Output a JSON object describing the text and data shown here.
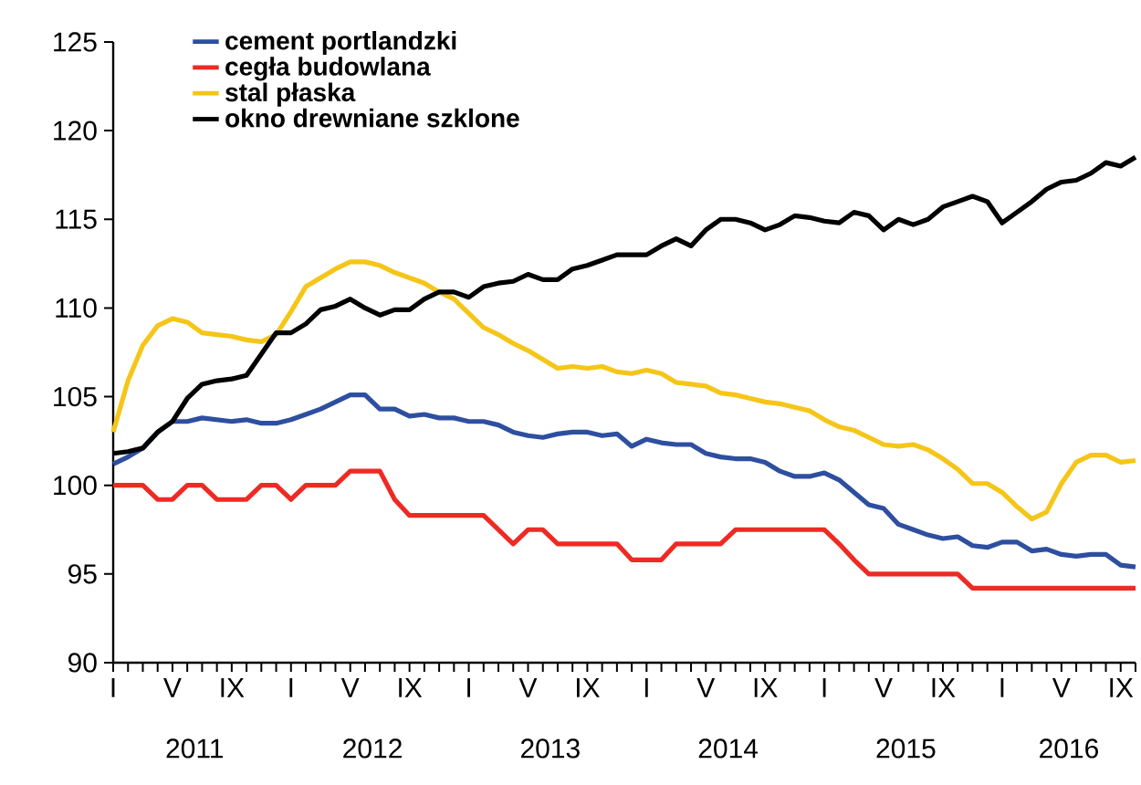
{
  "chart_data": {
    "type": "line",
    "categories": [
      "I",
      null,
      null,
      null,
      "V",
      null,
      null,
      null,
      "IX",
      null,
      null,
      null,
      "I",
      null,
      null,
      null,
      "V",
      null,
      null,
      null,
      "IX",
      null,
      null,
      null,
      "I",
      null,
      null,
      null,
      "V",
      null,
      null,
      null,
      "IX",
      null,
      null,
      null,
      "I",
      null,
      null,
      null,
      "V",
      null,
      null,
      null,
      "IX",
      null,
      null,
      null,
      "I",
      null,
      null,
      null,
      "V",
      null,
      null,
      null,
      "IX",
      null,
      null,
      null,
      "I",
      null,
      null,
      null,
      "V",
      null,
      null,
      null,
      "IX",
      null
    ],
    "series": [
      {
        "name": "cement portlandzki",
        "color": "#2e4fa0",
        "values": [
          101.2,
          101.6,
          102.1,
          103.0,
          103.6,
          103.6,
          103.8,
          103.7,
          103.6,
          103.7,
          103.5,
          103.5,
          103.7,
          104.0,
          104.3,
          104.7,
          105.1,
          105.1,
          104.3,
          104.3,
          103.9,
          104.0,
          103.8,
          103.8,
          103.6,
          103.6,
          103.4,
          103.0,
          102.8,
          102.7,
          102.9,
          103.0,
          103.0,
          102.8,
          102.9,
          102.2,
          102.6,
          102.4,
          102.3,
          102.3,
          101.8,
          101.6,
          101.5,
          101.5,
          101.3,
          100.8,
          100.5,
          100.5,
          100.7,
          100.3,
          99.6,
          98.9,
          98.7,
          97.8,
          97.5,
          97.2,
          97.0,
          97.1,
          96.6,
          96.5,
          96.8,
          96.8,
          96.3,
          96.4,
          96.1,
          96.0,
          96.1,
          96.1,
          95.5,
          95.4
        ]
      },
      {
        "name": "cegła budowlana",
        "color": "#ee2a24",
        "values": [
          100,
          100,
          100,
          99.2,
          99.2,
          100,
          100,
          99.2,
          99.2,
          99.2,
          100,
          100,
          99.2,
          100,
          100,
          100,
          100.8,
          100.8,
          100.8,
          99.2,
          98.3,
          98.3,
          98.3,
          98.3,
          98.3,
          98.3,
          97.5,
          96.7,
          97.5,
          97.5,
          96.7,
          96.7,
          96.7,
          96.7,
          96.7,
          95.8,
          95.8,
          95.8,
          96.7,
          96.7,
          96.7,
          96.7,
          97.5,
          97.5,
          97.5,
          97.5,
          97.5,
          97.5,
          97.5,
          96.7,
          95.8,
          95.0,
          95.0,
          95.0,
          95.0,
          95.0,
          95.0,
          95.0,
          94.2,
          94.2,
          94.2,
          94.2,
          94.2,
          94.2,
          94.2,
          94.2,
          94.2,
          94.2,
          94.2,
          94.2
        ]
      },
      {
        "name": "stal płaska",
        "color": "#f5c518",
        "values": [
          103.0,
          105.9,
          107.9,
          109.0,
          109.4,
          109.2,
          108.6,
          108.5,
          108.4,
          108.2,
          108.1,
          108.5,
          109.8,
          111.2,
          111.7,
          112.2,
          112.6,
          112.6,
          112.4,
          112.0,
          111.7,
          111.4,
          110.9,
          110.5,
          109.7,
          108.9,
          108.5,
          108.0,
          107.6,
          107.1,
          106.6,
          106.7,
          106.6,
          106.7,
          106.4,
          106.3,
          106.5,
          106.3,
          105.8,
          105.7,
          105.6,
          105.2,
          105.1,
          104.9,
          104.7,
          104.6,
          104.4,
          104.2,
          103.7,
          103.3,
          103.1,
          102.7,
          102.3,
          102.2,
          102.3,
          102.0,
          101.5,
          100.9,
          100.1,
          100.1,
          99.6,
          98.8,
          98.1,
          98.5,
          100.1,
          101.3,
          101.7,
          101.7,
          101.3,
          101.4
        ]
      },
      {
        "name": "okno drewniane szklone",
        "color": "#000000",
        "values": [
          101.8,
          101.9,
          102.1,
          103.0,
          103.6,
          104.9,
          105.7,
          105.9,
          106.0,
          106.2,
          107.4,
          108.6,
          108.6,
          109.1,
          109.9,
          110.1,
          110.5,
          110.0,
          109.6,
          109.9,
          109.9,
          110.5,
          110.9,
          110.9,
          110.6,
          111.2,
          111.4,
          111.5,
          111.9,
          111.6,
          111.6,
          112.2,
          112.4,
          112.7,
          113.0,
          113.0,
          113.0,
          113.5,
          113.9,
          113.5,
          114.4,
          115.0,
          115.0,
          114.8,
          114.4,
          114.7,
          115.2,
          115.1,
          114.9,
          114.8,
          115.4,
          115.2,
          114.4,
          115.0,
          114.7,
          115.0,
          115.7,
          116.0,
          116.3,
          116.0,
          114.8,
          115.4,
          116.0,
          116.7,
          117.1,
          117.2,
          117.6,
          118.2,
          118.0,
          118.5
        ]
      }
    ],
    "ylim": [
      90,
      125
    ],
    "yticks": [
      90,
      95,
      100,
      105,
      110,
      115,
      120,
      125
    ],
    "legend": "top left",
    "grid": false,
    "annotations": [
      "2011",
      "2012",
      "2013",
      "2014",
      "2015",
      "2016"
    ]
  }
}
